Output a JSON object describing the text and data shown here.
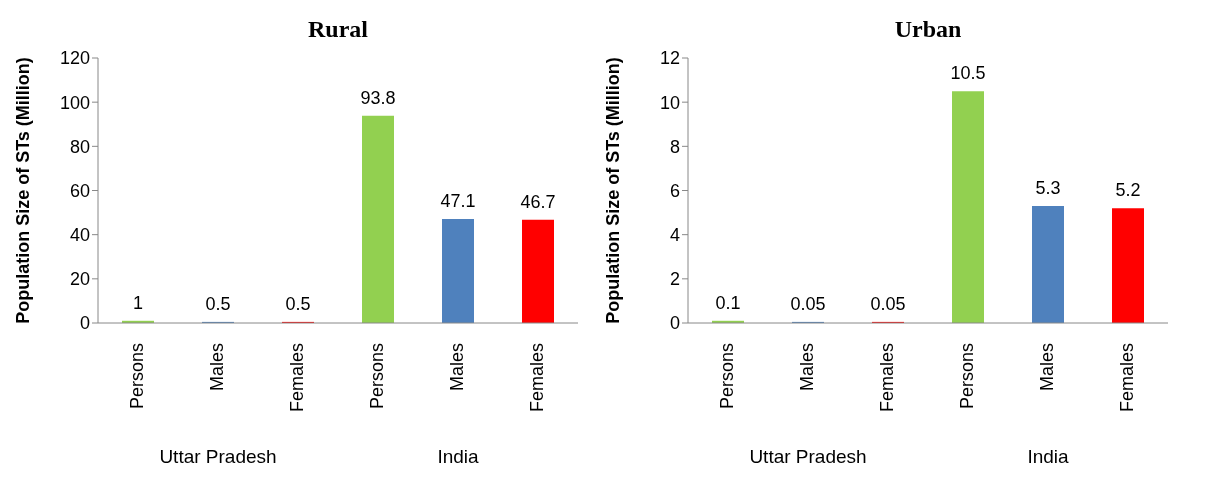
{
  "chart_data": [
    {
      "type": "bar",
      "title": "Rural",
      "ylabel": "Population Size of STs (Million)",
      "categories": [
        "Persons",
        "Males",
        "Females",
        "Persons",
        "Males",
        "Females"
      ],
      "values": [
        1,
        0.5,
        0.5,
        93.8,
        47.1,
        46.7
      ],
      "colors": [
        "#92d050",
        "#4f81bd",
        "#ff0000",
        "#92d050",
        "#4f81bd",
        "#ff0000"
      ],
      "ylim": [
        0,
        120
      ],
      "yticks": [
        0,
        20,
        40,
        60,
        80,
        100,
        120
      ],
      "data_labels": true,
      "annotations": [
        "Uttar Pradesh",
        "India"
      ]
    },
    {
      "type": "bar",
      "title": "Urban",
      "ylabel": "Population Size of STs (Million)",
      "categories": [
        "Persons",
        "Males",
        "Females",
        "Persons",
        "Males",
        "Females"
      ],
      "values": [
        0.1,
        0.05,
        0.05,
        10.5,
        5.3,
        5.2
      ],
      "colors": [
        "#92d050",
        "#4f81bd",
        "#ff0000",
        "#92d050",
        "#4f81bd",
        "#ff0000"
      ],
      "ylim": [
        0,
        12
      ],
      "yticks": [
        0,
        2,
        4,
        6,
        8,
        10,
        12
      ],
      "data_labels": true,
      "annotations": [
        "Uttar Pradesh",
        "India"
      ]
    }
  ]
}
